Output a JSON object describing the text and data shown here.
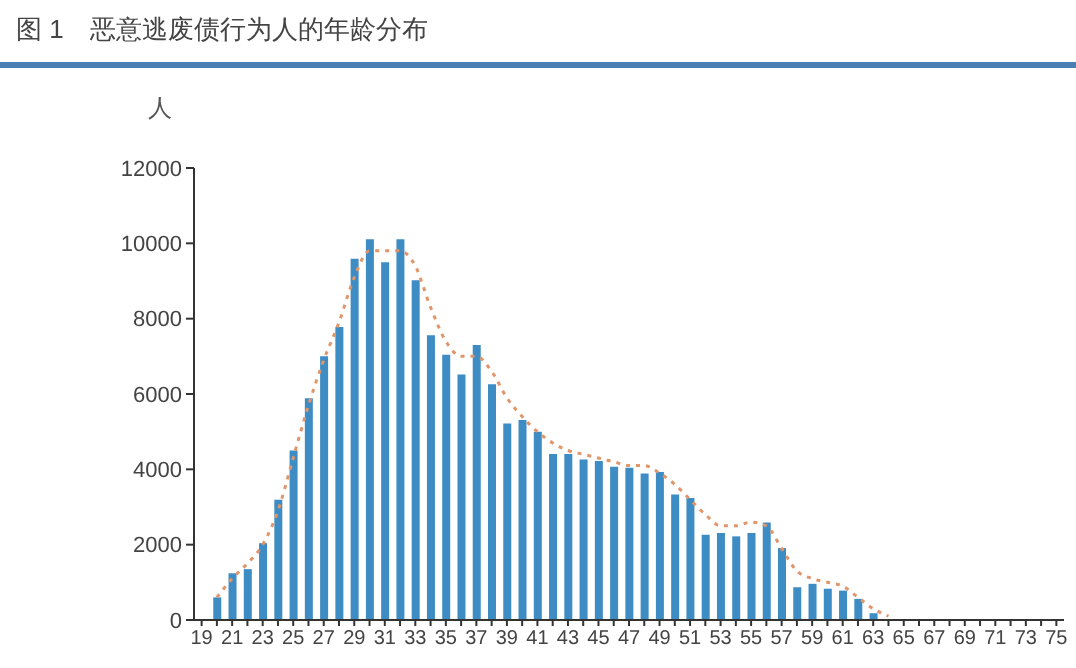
{
  "chart_data": {
    "type": "bar",
    "title": "图 1　恶意逃废债行为人的年龄分布",
    "ylabel": "人",
    "categories": [
      "19",
      null,
      "21",
      null,
      "23",
      null,
      "25",
      null,
      "27",
      null,
      "29",
      null,
      "31",
      null,
      "33",
      null,
      "35",
      null,
      "37",
      null,
      "39",
      null,
      "41",
      null,
      "43",
      null,
      "45",
      null,
      "47",
      null,
      "49",
      null,
      "51",
      null,
      "53",
      null,
      "55",
      null,
      "57",
      null,
      "59",
      null,
      "61",
      null,
      "63",
      null,
      "65",
      null,
      "67",
      null,
      "69",
      null,
      "71",
      null,
      "73",
      null,
      "75"
    ],
    "series": [
      {
        "color": "#3d8cc4",
        "values": [
          0,
          600,
          1240,
          1350,
          2040,
          3190,
          4500,
          5890,
          7000,
          7780,
          9590,
          10110,
          9500,
          10110,
          9020,
          7560,
          7040,
          6520,
          7300,
          6260,
          5220,
          5310,
          5000,
          4410,
          4410,
          4260,
          4220,
          4070,
          4040,
          3890,
          3930,
          3330,
          3240,
          2260,
          2310,
          2220,
          2310,
          2590,
          1910,
          870,
          960,
          830,
          780,
          560,
          180,
          0,
          0,
          0,
          0,
          0,
          0,
          0,
          0,
          0,
          0,
          0,
          0
        ]
      },
      {
        "type": "line",
        "color": "#e0956a",
        "line_style": "dotted",
        "marker": "none",
        "values": [
          null,
          600,
          1100,
          1500,
          2000,
          2900,
          4300,
          5700,
          6900,
          7900,
          9100,
          9800,
          9800,
          9800,
          9400,
          8300,
          7400,
          7000,
          7000,
          6600,
          5900,
          5400,
          5000,
          4700,
          4500,
          4400,
          4300,
          4200,
          4100,
          4100,
          3900,
          3600,
          3200,
          2800,
          2500,
          2500,
          2600,
          2500,
          1900,
          1300,
          1100,
          1000,
          900,
          600,
          300,
          100,
          null,
          null,
          null,
          null,
          null,
          null,
          null,
          null,
          null,
          null,
          null
        ]
      }
    ],
    "ylim": [
      0,
      12000
    ],
    "yticks": [
      0,
      2000,
      4000,
      6000,
      8000,
      10000,
      12000
    ]
  }
}
